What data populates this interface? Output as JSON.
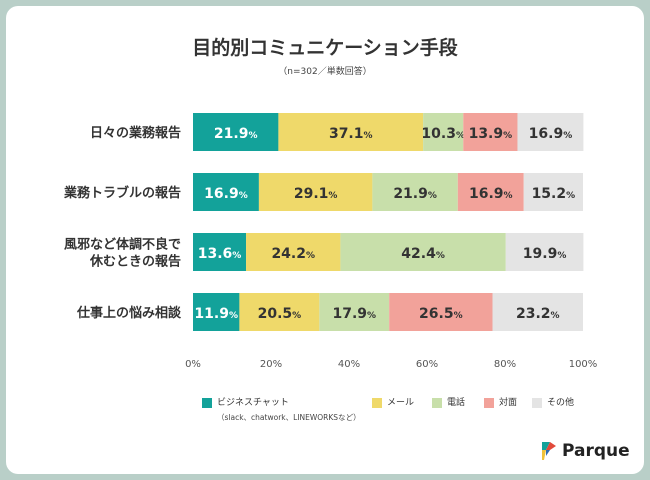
{
  "title": "目的別コミュニケーション手段",
  "subtitle": "（n=302／単数回答）",
  "colors": {
    "background": "#b9cfc8",
    "card": "#ffffff",
    "business_chat": "#13a29a",
    "mail": "#efd96a",
    "phone": "#c8dfaa",
    "face_to_face": "#f2a29a",
    "other": "#e4e4e4"
  },
  "chart_data": {
    "type": "bar",
    "orientation": "horizontal",
    "stacked": true,
    "categories": [
      "日々の業務報告",
      "業務トラブルの報告",
      "風邪など体調不良で\n休むときの報告",
      "仕事上の悩み相談"
    ],
    "series": [
      {
        "name": "ビジネスチャット",
        "color": "#13a29a",
        "values": [
          21.9,
          16.9,
          13.6,
          11.9
        ]
      },
      {
        "name": "メール",
        "color": "#efd96a",
        "values": [
          37.1,
          29.1,
          24.2,
          20.5
        ]
      },
      {
        "name": "電話",
        "color": "#c8dfaa",
        "values": [
          10.3,
          21.9,
          42.4,
          17.9
        ]
      },
      {
        "name": "対面",
        "color": "#f2a29a",
        "values": [
          13.9,
          16.9,
          0,
          26.5
        ]
      },
      {
        "name": "その他",
        "color": "#e4e4e4",
        "values": [
          16.9,
          15.2,
          19.9,
          23.2
        ]
      }
    ],
    "xlim": [
      0,
      100
    ],
    "xticks": [
      "0%",
      "20%",
      "40%",
      "60%",
      "80%",
      "100%"
    ],
    "value_suffix": "%",
    "grid": false,
    "legend_position": "bottom"
  },
  "legend": {
    "items": [
      {
        "label": "ビジネスチャット",
        "sublabel": "（slack、chatwork、LINEWORKSなど）",
        "color": "#13a29a"
      },
      {
        "label": "メール",
        "color": "#efd96a"
      },
      {
        "label": "電話",
        "color": "#c8dfaa"
      },
      {
        "label": "対面",
        "color": "#f2a29a"
      },
      {
        "label": "その他",
        "color": "#e4e4e4"
      }
    ]
  },
  "logo": {
    "text": "Parque"
  }
}
